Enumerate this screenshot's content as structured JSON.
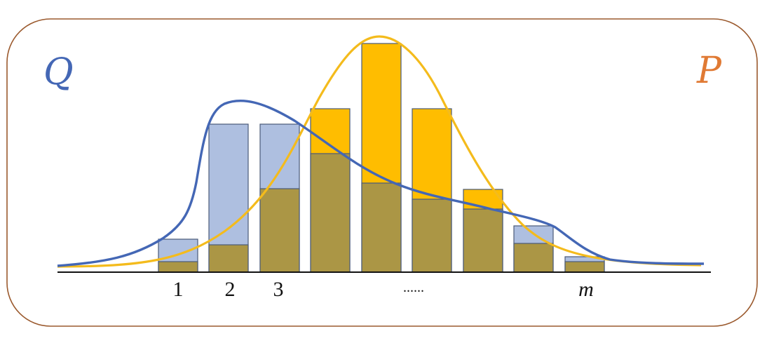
{
  "diagram": {
    "distribution_q": {
      "label": "Q",
      "color": "#4467b5"
    },
    "distribution_p": {
      "label": "P",
      "color": "#e07a34"
    },
    "bin_labels": [
      "1",
      "2",
      "3",
      "",
      "......",
      "",
      "",
      "",
      "m"
    ],
    "colors": {
      "frame": "#9b5a2e",
      "q_bar_fill": "#aebfe0",
      "p_bar_fill": "#ffbd00",
      "overlap_fill": "#ab9645",
      "bar_outline": "#4a5a78",
      "q_curve": "#4467b5",
      "p_curve": "#f4bb1c",
      "axis": "#111111"
    }
  }
}
